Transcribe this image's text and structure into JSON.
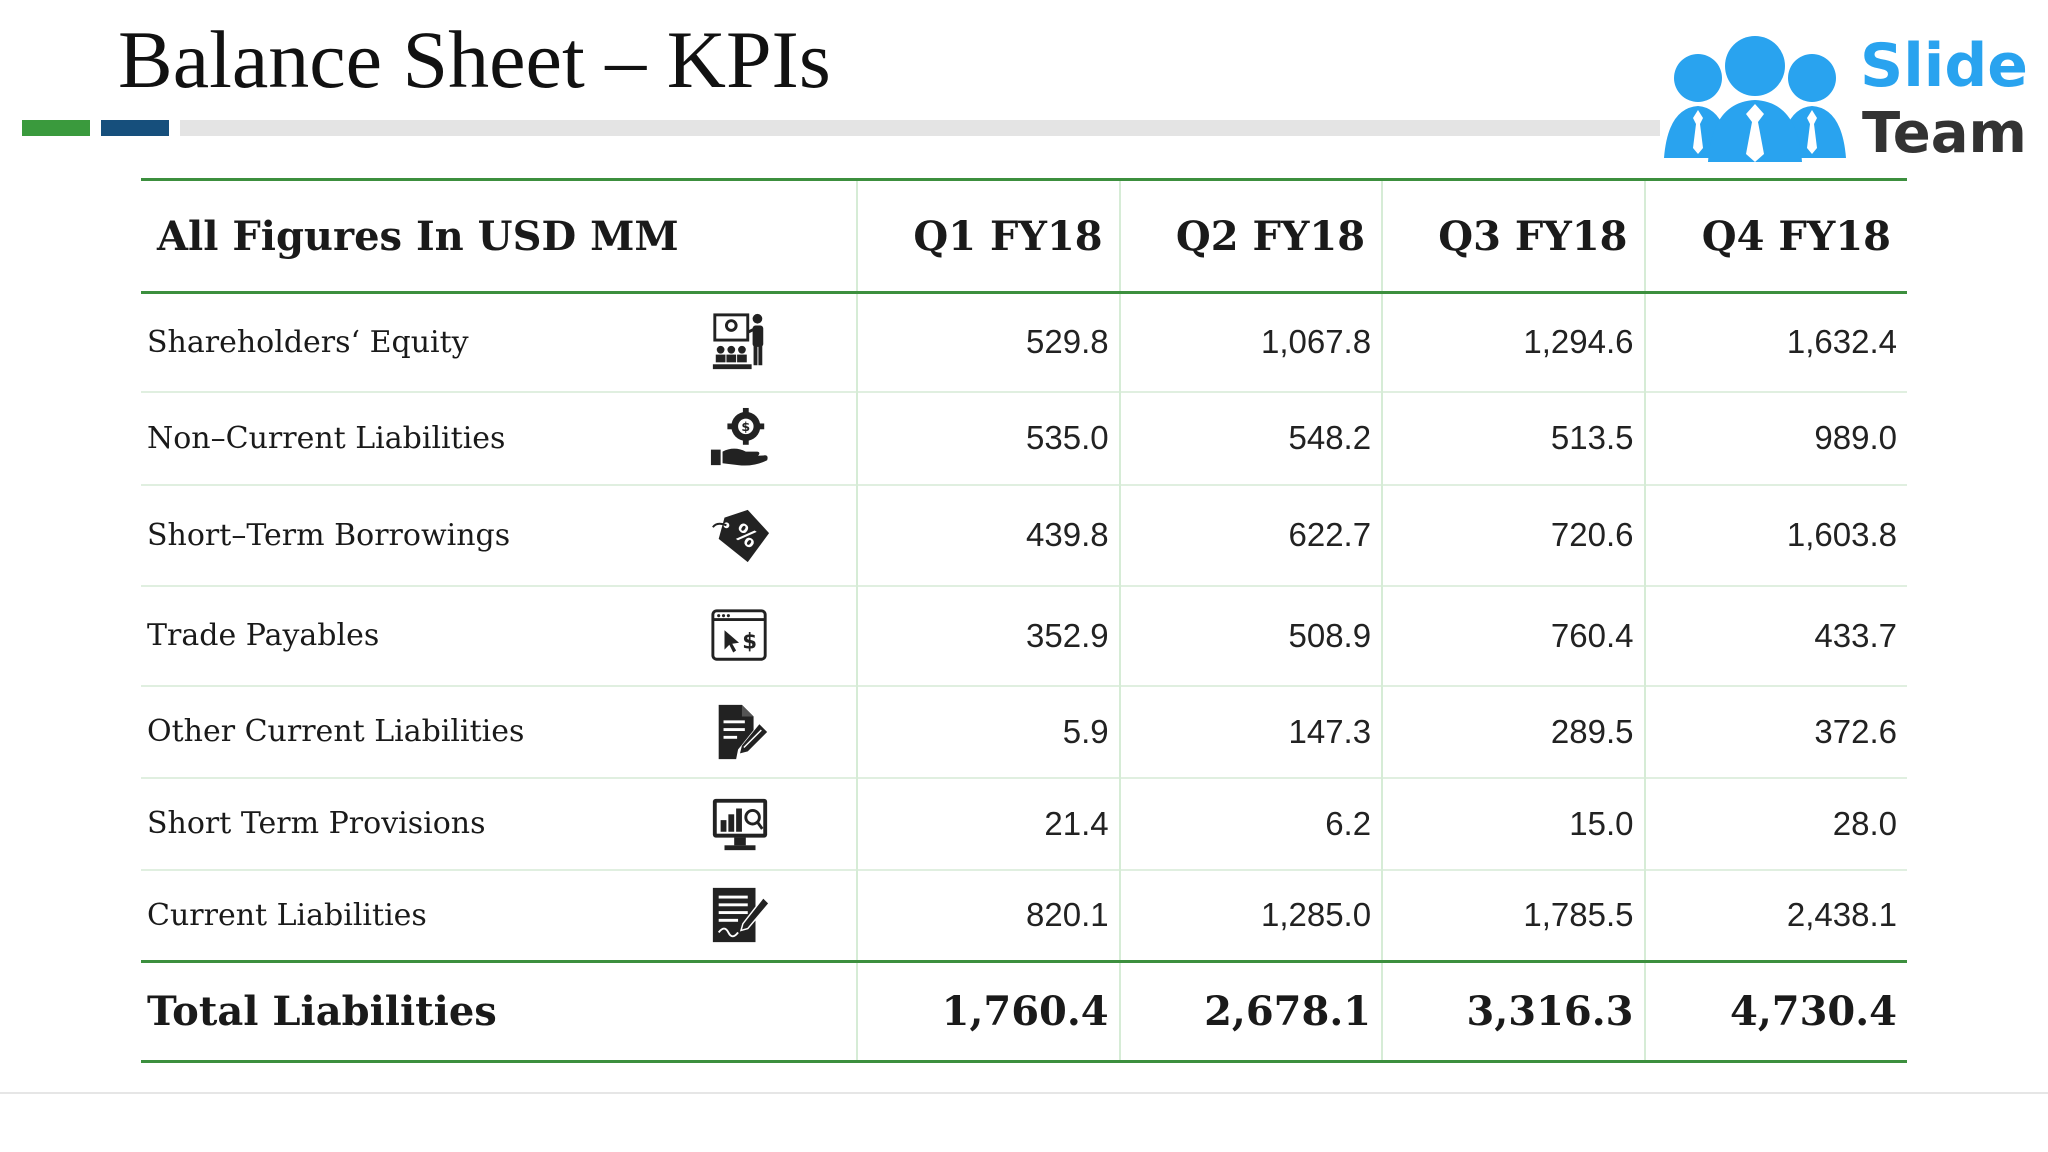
{
  "title": "Balance Sheet – KPIs",
  "logo": {
    "word1": "Slide",
    "word2": "Team",
    "color_primary": "#29a3ef",
    "color_text": "#333333"
  },
  "accent_colors": {
    "green": "#3a9a3d",
    "navy": "#164f7c",
    "rule_green": "#3c8f3e"
  },
  "table": {
    "header": {
      "label": "All Figures In USD MM",
      "quarters": [
        "Q1 FY18",
        "Q2 FY18",
        "Q3 FY18",
        "Q4 FY18"
      ]
    },
    "rows": [
      {
        "label": "Shareholders‘ Equity",
        "icon": "presentation-icon",
        "values": [
          "529.8",
          "1,067.8",
          "1,294.6",
          "1,632.4"
        ]
      },
      {
        "label": "Non–Current Liabilities",
        "icon": "money-hand-gear-icon",
        "values": [
          "535.0",
          "548.2",
          "513.5",
          "989.0"
        ]
      },
      {
        "label": "Short–Term Borrowings",
        "icon": "percent-tag-icon",
        "values": [
          "439.8",
          "622.7",
          "720.6",
          "1,603.8"
        ]
      },
      {
        "label": "Trade Payables",
        "icon": "browser-payment-icon",
        "values": [
          "352.9",
          "508.9",
          "760.4",
          "433.7"
        ]
      },
      {
        "label": "Other Current Liabilities",
        "icon": "document-edit-icon",
        "values": [
          "5.9",
          "147.3",
          "289.5",
          "372.6"
        ]
      },
      {
        "label": "Short Term Provisions",
        "icon": "monitor-chart-icon",
        "values": [
          "21.4",
          "6.2",
          "15.0",
          "28.0"
        ]
      },
      {
        "label": "Current Liabilities",
        "icon": "document-signature-icon",
        "values": [
          "820.1",
          "1,285.0",
          "1,785.5",
          "2,438.1"
        ]
      }
    ],
    "total": {
      "label": "Total Liabilities",
      "values": [
        "1,760.4",
        "2,678.1",
        "3,316.3",
        "4,730.4"
      ]
    }
  }
}
